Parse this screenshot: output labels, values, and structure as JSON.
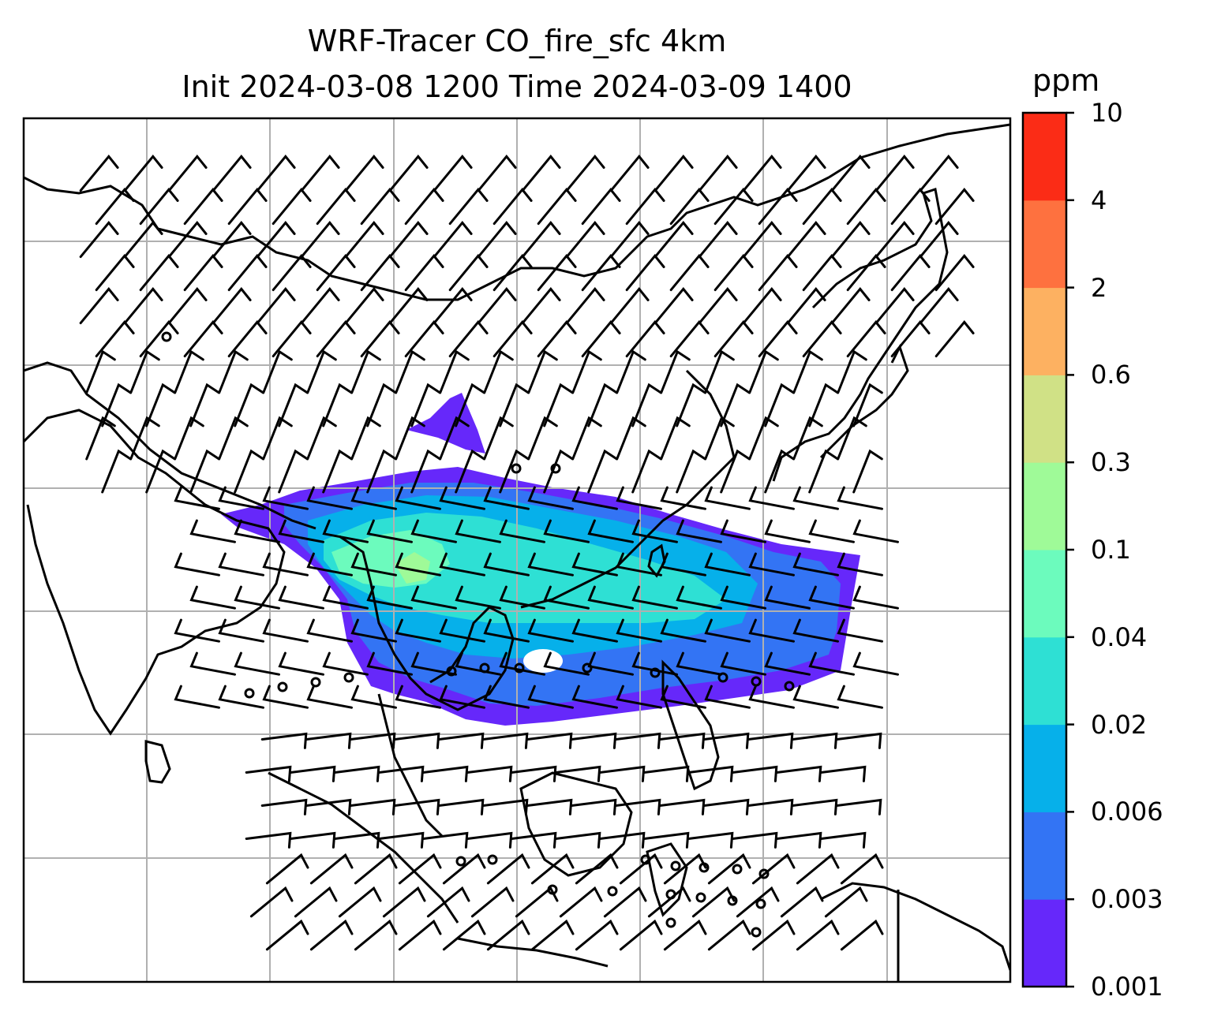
{
  "title_line1": "WRF-Tracer CO_fire_sfc 4km",
  "title_line2": "Init 2024-03-08 1200 Time 2024-03-09 1400",
  "colorbar": {
    "unit": "ppm",
    "levels": [
      "0.001",
      "0.003",
      "0.006",
      "0.02",
      "0.04",
      "0.1",
      "0.3",
      "0.6",
      "2",
      "4",
      "10"
    ],
    "colors": [
      "#6628fa",
      "#3374f4",
      "#06b0ea",
      "#2ee0d4",
      "#6cfbbd",
      "#9ffa98",
      "#d0e186",
      "#fdb161",
      "#fe713f",
      "#fb2c16"
    ]
  },
  "map": {
    "gridlines": true,
    "coastline_color": "#000000",
    "wind_barbs": true,
    "calm_markers": true
  }
}
